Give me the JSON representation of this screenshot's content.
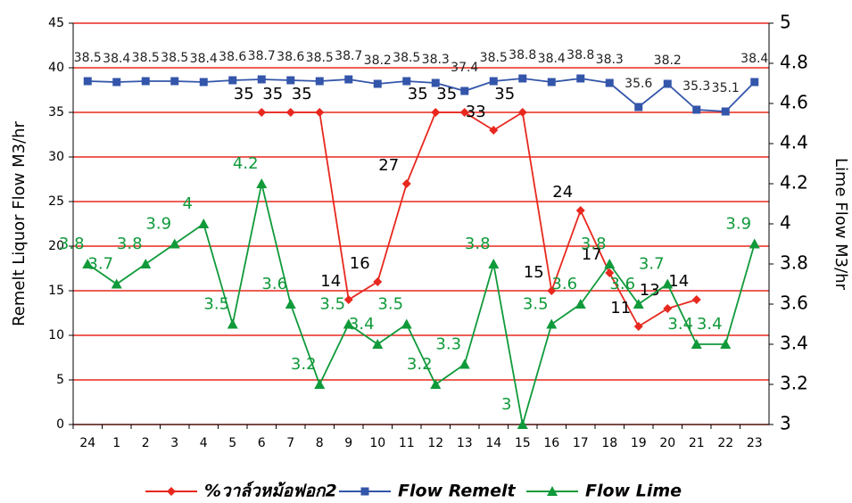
{
  "chart_data": {
    "type": "line",
    "categories": [
      "24",
      "1",
      "2",
      "3",
      "4",
      "5",
      "6",
      "7",
      "8",
      "9",
      "10",
      "11",
      "12",
      "13",
      "14",
      "15",
      "16",
      "17",
      "18",
      "19",
      "20",
      "21",
      "22",
      "23"
    ],
    "series": [
      {
        "name": "%วาล์วหม้อฟอก2",
        "color": "#e8281e",
        "marker": "diamond",
        "values": [
          null,
          null,
          null,
          null,
          null,
          null,
          35,
          35,
          35,
          14,
          16,
          27,
          35,
          35,
          33,
          35,
          15,
          24,
          17,
          11,
          13,
          14,
          null,
          null
        ]
      },
      {
        "name": "Flow Remelt",
        "color": "#3355aa",
        "marker": "square",
        "values": [
          38.5,
          38.4,
          38.5,
          38.5,
          38.4,
          38.6,
          38.7,
          38.6,
          38.5,
          38.7,
          38.2,
          38.5,
          38.3,
          37.4,
          38.5,
          38.8,
          38.4,
          38.8,
          38.3,
          35.6,
          38.2,
          35.3,
          35.1,
          38.4
        ]
      },
      {
        "name": "Flow Lime",
        "color": "#109a3a",
        "marker": "triangle",
        "axis": "y2",
        "values": [
          3.8,
          3.7,
          3.8,
          3.9,
          4,
          3.5,
          4.2,
          3.6,
          3.2,
          3.5,
          3.4,
          3.5,
          3.2,
          3.3,
          3.8,
          3,
          3.5,
          3.6,
          3.8,
          3.6,
          3.7,
          3.4,
          3.4,
          3.9
        ]
      }
    ],
    "ylabel": "Remelt Liquor Flow M3/hr",
    "y2label": "Lime Flow M3/hr",
    "ylim": [
      0,
      45
    ],
    "yticks": [
      0,
      5,
      10,
      15,
      20,
      25,
      30,
      35,
      40,
      45
    ],
    "y2lim": [
      3,
      5
    ],
    "y2ticks": [
      3,
      3.2,
      3.4,
      3.6,
      3.8,
      4,
      4.2,
      4.4,
      4.6,
      4.8,
      5
    ],
    "grid": true,
    "grid_color": "#e8281e",
    "legend": "bottom"
  }
}
